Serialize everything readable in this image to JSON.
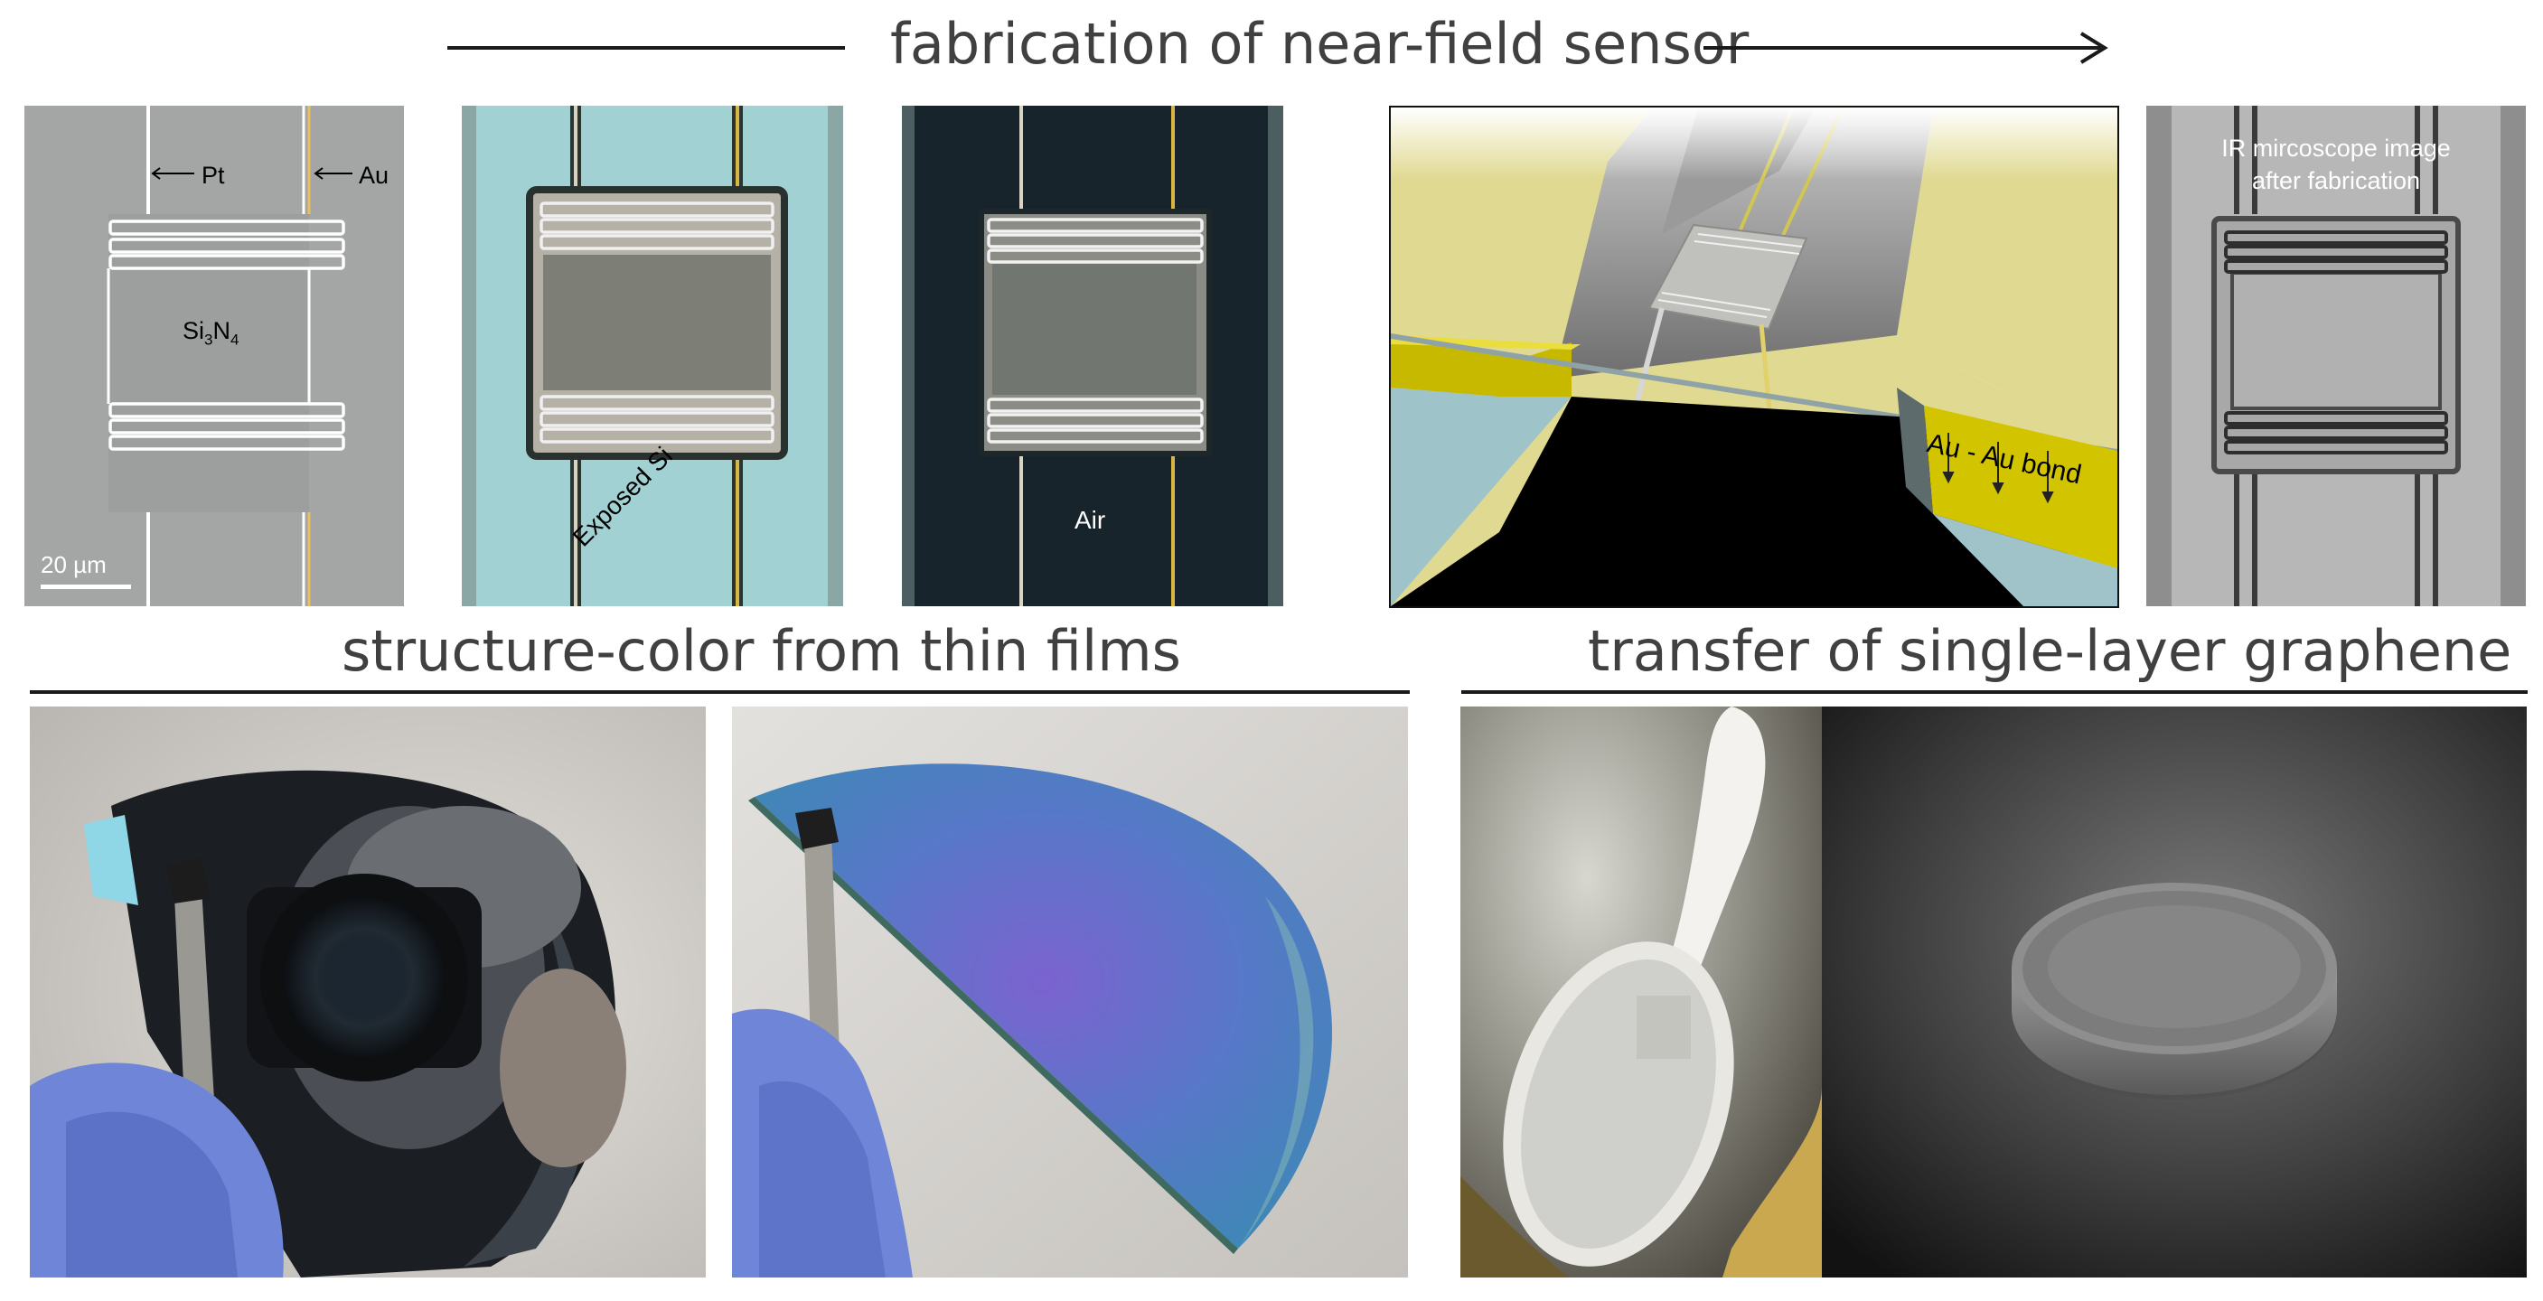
{
  "top": {
    "title": "fabrication of near-field sensor"
  },
  "panels": {
    "micro1": {
      "pt": "Pt",
      "au": "Au",
      "si": "Si",
      "si_sub1": "3",
      "n": "N",
      "n_sub": "4",
      "scale": "20 µm"
    },
    "micro2": {
      "label": "Exposed Si"
    },
    "micro3": {
      "label": "Air"
    },
    "render": {
      "label": "Au - Au bond"
    },
    "ir": {
      "line1": "IR mircoscope image",
      "line2": "after fabrication"
    }
  },
  "bottom": {
    "left_title": "structure-color from thin films",
    "right_title": "transfer of single-layer graphene"
  },
  "colors": {
    "heading": "#404040",
    "gold": "#d4b800",
    "glove_blue": "#6f86d8"
  }
}
